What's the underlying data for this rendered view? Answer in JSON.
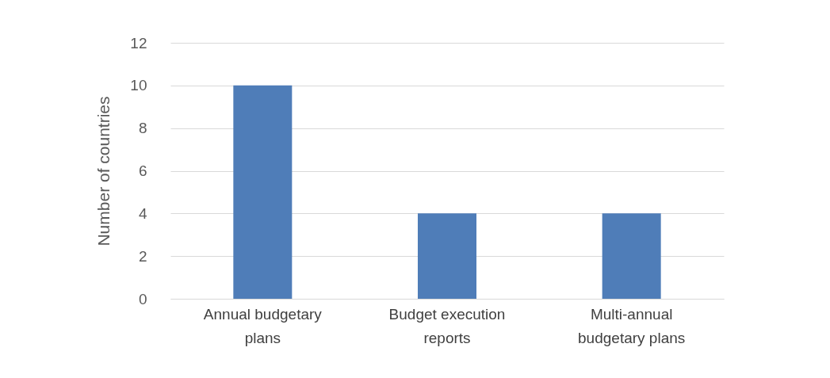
{
  "chart_data": {
    "type": "bar",
    "ylabel": "Number of countries",
    "categories": [
      "Annual budgetary plans",
      "Budget execution reports",
      "Multi-annual budgetary plans"
    ],
    "values": [
      10,
      4,
      4
    ],
    "color": "#4f7db8",
    "ylim": [
      0,
      12
    ],
    "yticks": [
      0,
      2,
      4,
      6,
      8,
      10,
      12
    ],
    "grid": "y"
  }
}
